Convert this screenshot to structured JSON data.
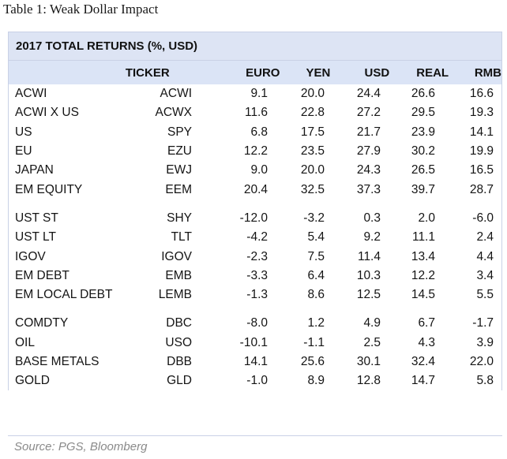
{
  "caption": "Table 1: Weak Dollar Impact",
  "table_title": "2017 TOTAL RETURNS (%, USD)",
  "headers": {
    "ticker": "TICKER",
    "euro": "EURO",
    "yen": "YEN",
    "usd": "USD",
    "real": "REAL",
    "rmb": "RMB"
  },
  "groups": [
    [
      {
        "name": "ACWI",
        "ticker": "ACWI",
        "euro": "9.1",
        "yen": "20.0",
        "usd": "24.4",
        "real": "26.6",
        "rmb": "16.6"
      },
      {
        "name": "ACWI X US",
        "ticker": "ACWX",
        "euro": "11.6",
        "yen": "22.8",
        "usd": "27.2",
        "real": "29.5",
        "rmb": "19.3"
      },
      {
        "name": "US",
        "ticker": "SPY",
        "euro": "6.8",
        "yen": "17.5",
        "usd": "21.7",
        "real": "23.9",
        "rmb": "14.1"
      },
      {
        "name": "EU",
        "ticker": "EZU",
        "euro": "12.2",
        "yen": "23.5",
        "usd": "27.9",
        "real": "30.2",
        "rmb": "19.9"
      },
      {
        "name": "JAPAN",
        "ticker": "EWJ",
        "euro": "9.0",
        "yen": "20.0",
        "usd": "24.3",
        "real": "26.5",
        "rmb": "16.5"
      },
      {
        "name": "EM EQUITY",
        "ticker": "EEM",
        "euro": "20.4",
        "yen": "32.5",
        "usd": "37.3",
        "real": "39.7",
        "rmb": "28.7"
      }
    ],
    [
      {
        "name": "UST ST",
        "ticker": "SHY",
        "euro": "-12.0",
        "yen": "-3.2",
        "usd": "0.3",
        "real": "2.0",
        "rmb": "-6.0"
      },
      {
        "name": "UST LT",
        "ticker": "TLT",
        "euro": "-4.2",
        "yen": "5.4",
        "usd": "9.2",
        "real": "11.1",
        "rmb": "2.4"
      },
      {
        "name": "IGOV",
        "ticker": "IGOV",
        "euro": "-2.3",
        "yen": "7.5",
        "usd": "11.4",
        "real": "13.4",
        "rmb": "4.4"
      },
      {
        "name": "EM DEBT",
        "ticker": "EMB",
        "euro": "-3.3",
        "yen": "6.4",
        "usd": "10.3",
        "real": "12.2",
        "rmb": "3.4"
      },
      {
        "name": "EM LOCAL DEBT",
        "ticker": "LEMB",
        "euro": "-1.3",
        "yen": "8.6",
        "usd": "12.5",
        "real": "14.5",
        "rmb": "5.5"
      }
    ],
    [
      {
        "name": "COMDTY",
        "ticker": "DBC",
        "euro": "-8.0",
        "yen": "1.2",
        "usd": "4.9",
        "real": "6.7",
        "rmb": "-1.7"
      },
      {
        "name": "OIL",
        "ticker": "USO",
        "euro": "-10.1",
        "yen": "-1.1",
        "usd": "2.5",
        "real": "4.3",
        "rmb": "3.9"
      },
      {
        "name": "BASE METALS",
        "ticker": "DBB",
        "euro": "14.1",
        "yen": "25.6",
        "usd": "30.1",
        "real": "32.4",
        "rmb": "22.0"
      },
      {
        "name": "GOLD",
        "ticker": "GLD",
        "euro": "-1.0",
        "yen": "8.9",
        "usd": "12.8",
        "real": "14.7",
        "rmb": "5.8"
      }
    ]
  ],
  "source": "Source: PGS, Bloomberg"
}
